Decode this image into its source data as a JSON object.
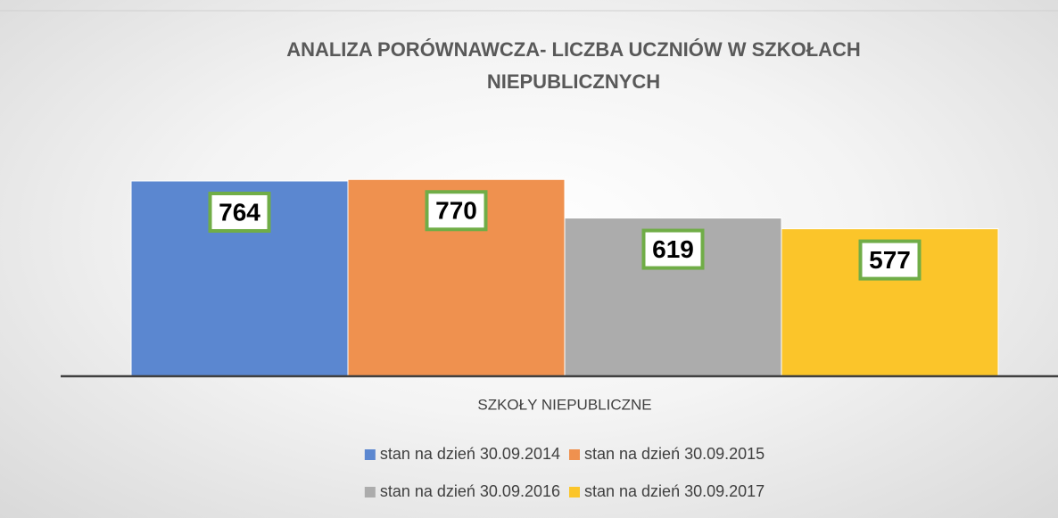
{
  "chart_data": {
    "type": "bar",
    "title": "ANALIZA PORÓWNAWCZA- LICZBA UCZNIÓW W SZKOŁACH NIEPUBLICZNYCH",
    "categories": [
      "SZKOŁY NIEPUBLICZNE"
    ],
    "series": [
      {
        "name": "stan na dzień 30.09.2014",
        "color": "#5b87d0",
        "values": [
          764
        ]
      },
      {
        "name": "stan na dzień 30.09.2015",
        "color": "#ef914f",
        "values": [
          770
        ]
      },
      {
        "name": "stan na dzień 30.09.2016",
        "color": "#acacac",
        "values": [
          619
        ]
      },
      {
        "name": "stan na dzień 30.09.2017",
        "color": "#fbc52a",
        "values": [
          577
        ]
      }
    ],
    "ylim": [
      0,
      900
    ],
    "label_border_color": "#70ad47"
  }
}
